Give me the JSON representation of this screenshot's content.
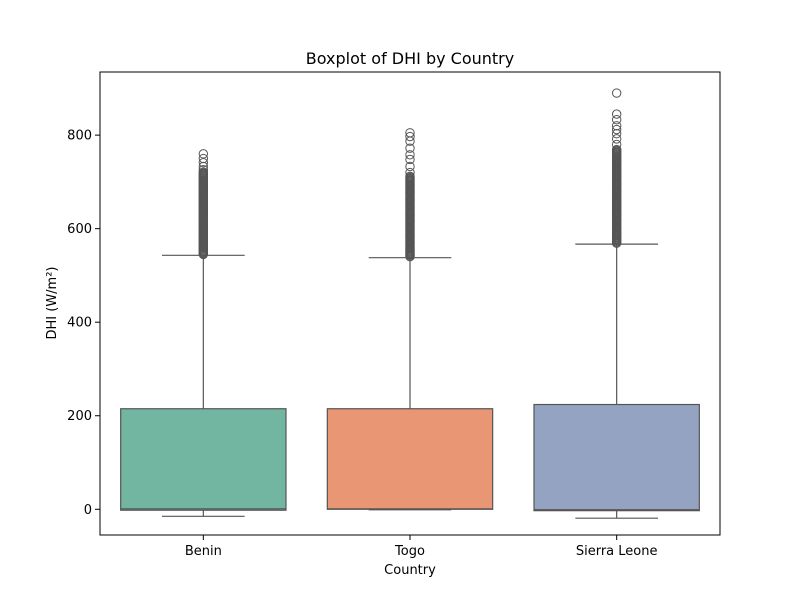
{
  "chart_data": {
    "type": "boxplot",
    "title": "Boxplot of DHI by Country",
    "xlabel": "Country",
    "ylabel": "DHI (W/m²)",
    "ylim": [
      -55,
      935
    ],
    "yticks": [
      0,
      200,
      400,
      600,
      800
    ],
    "grid": false,
    "legend": "none",
    "categories": [
      "Benin",
      "Togo",
      "Sierra Leone"
    ],
    "series": [
      {
        "category": "Benin",
        "color": "#72b6a1",
        "whisker_low": -15,
        "q1": -2,
        "median": 1,
        "q3": 215,
        "whisker_high": 543,
        "outlier_dense": [
          545,
          722
        ],
        "outliers": [
          726,
          733,
          741,
          750,
          760
        ]
      },
      {
        "category": "Togo",
        "color": "#e99675",
        "whisker_low": -1,
        "q1": 0,
        "median": 1,
        "q3": 215,
        "whisker_high": 538,
        "outlier_dense": [
          540,
          712
        ],
        "outliers": [
          720,
          733,
          748,
          758,
          772,
          787,
          797,
          805
        ]
      },
      {
        "category": "Sierra Leone",
        "color": "#95a3c3",
        "whisker_low": -19,
        "q1": -3,
        "median": -1,
        "q3": 224,
        "whisker_high": 567,
        "outlier_dense": [
          569,
          770
        ],
        "outliers": [
          780,
          792,
          803,
          812,
          820,
          833,
          845,
          890
        ]
      }
    ],
    "box_edge_color": "#555555"
  }
}
